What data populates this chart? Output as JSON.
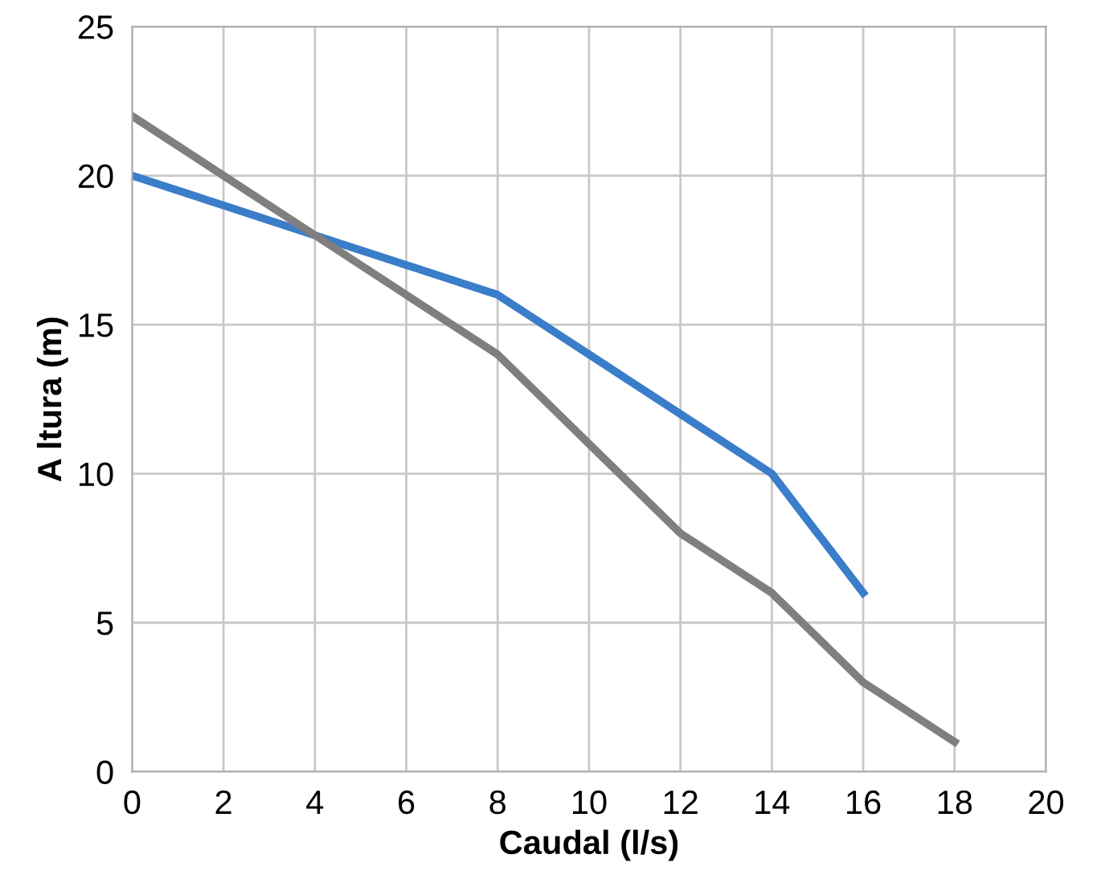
{
  "chart_data": {
    "type": "line",
    "xlabel": "Caudal (l/s)",
    "ylabel": "A ltura (m)",
    "xlim": [
      0,
      20
    ],
    "xticks": [
      0,
      2,
      4,
      6,
      8,
      10,
      12,
      14,
      16,
      18,
      20
    ],
    "ylim": [
      0,
      25
    ],
    "yticks": [
      0,
      5,
      10,
      15,
      20,
      25
    ],
    "grid": true,
    "line_style": "solid",
    "series": [
      {
        "color": "#3a7dc9",
        "x": [
          0,
          2,
          4,
          6,
          7,
          8,
          10,
          12,
          13,
          14,
          15,
          16
        ],
        "values": [
          20,
          19,
          18,
          17,
          16.5,
          16,
          14,
          12,
          11,
          10,
          8,
          6
        ]
      },
      {
        "color": "#7f7f7f",
        "x": [
          0,
          2,
          4,
          6,
          8,
          10,
          12,
          14,
          15,
          16,
          18
        ],
        "values": [
          22,
          20,
          18,
          16,
          14,
          11,
          8,
          6,
          4.5,
          3,
          1
        ]
      }
    ]
  }
}
